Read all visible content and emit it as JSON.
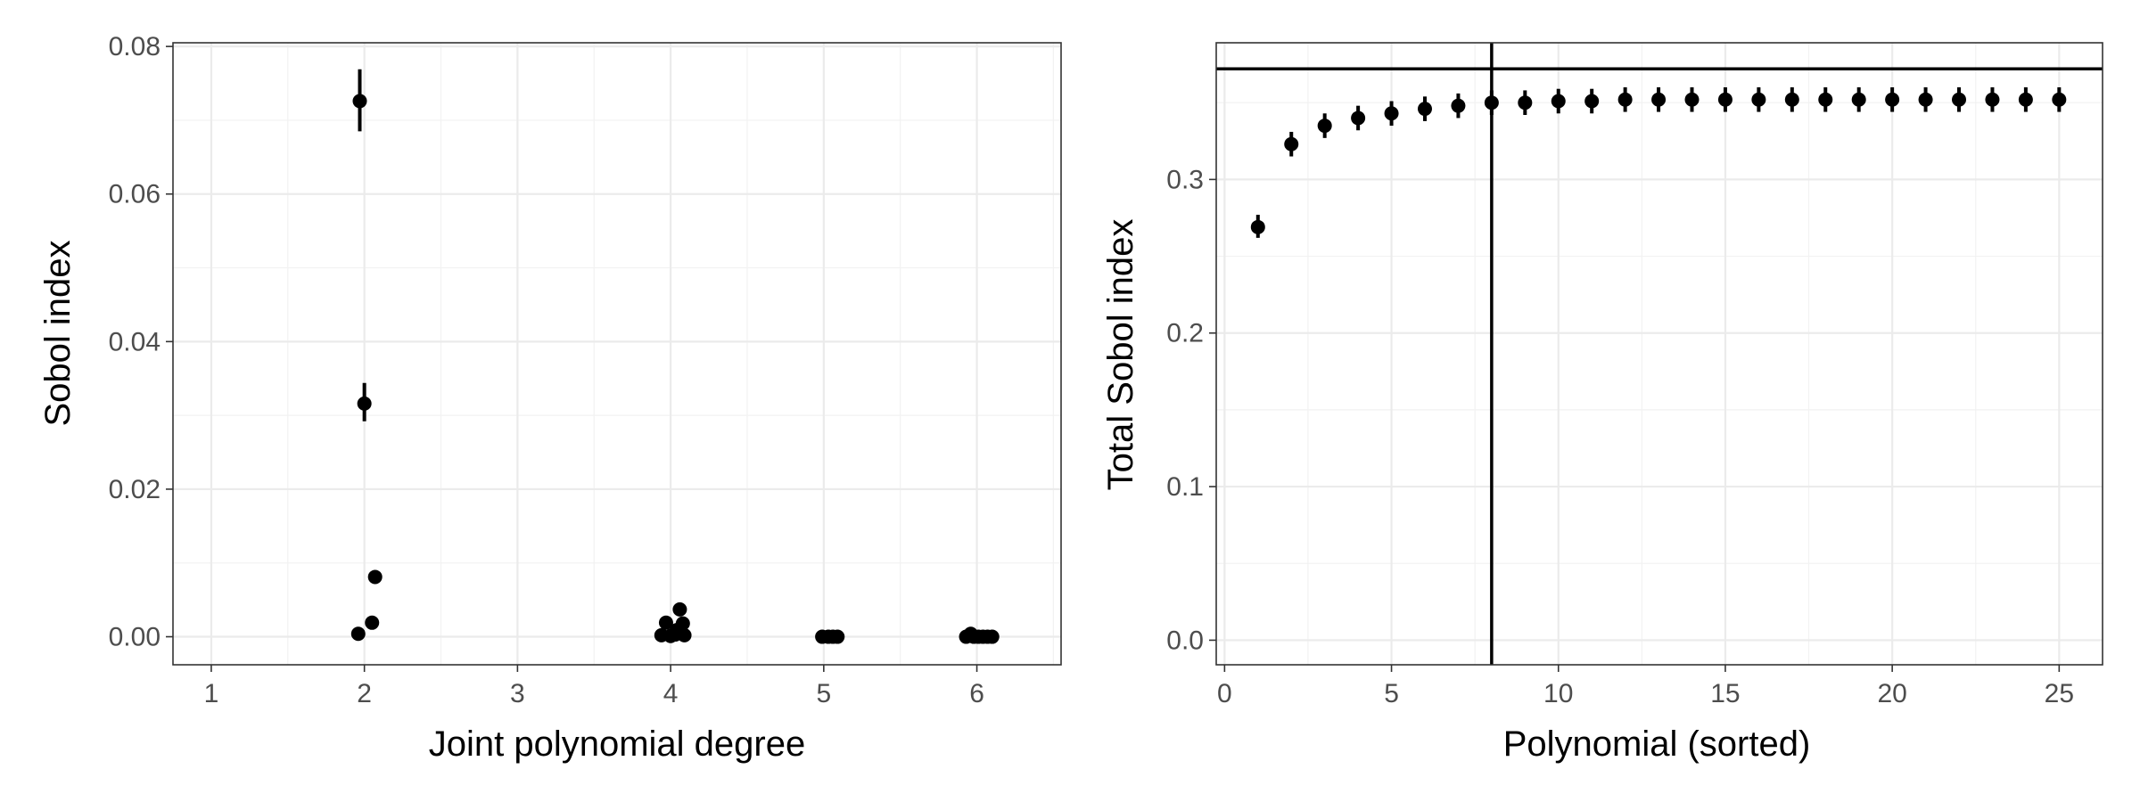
{
  "chart_data": [
    {
      "type": "scatter",
      "title": "",
      "xlabel": "Joint polynomial degree",
      "ylabel": "Sobol index",
      "xlim": [
        0.75,
        6.55
      ],
      "ylim": [
        -0.0038,
        0.0805
      ],
      "x_ticks": [
        1,
        2,
        3,
        4,
        5,
        6
      ],
      "y_ticks": [
        0.0,
        0.02,
        0.04,
        0.06,
        0.08
      ],
      "x_tick_labels": [
        "1",
        "2",
        "3",
        "4",
        "5",
        "6"
      ],
      "y_tick_labels": [
        "0.00",
        "0.02",
        "0.04",
        "0.06",
        "0.08"
      ],
      "grid": true,
      "legend": "none",
      "marker_color": "#000000",
      "points": [
        {
          "x": 1.97,
          "y": 0.0726,
          "ymin": 0.0685,
          "ymax": 0.0769
        },
        {
          "x": 2.0,
          "y": 0.0316,
          "ymin": 0.0292,
          "ymax": 0.0344
        },
        {
          "x": 2.07,
          "y": 0.0081,
          "ymin": 0.0081,
          "ymax": 0.0081
        },
        {
          "x": 2.05,
          "y": 0.0019,
          "ymin": 0.0019,
          "ymax": 0.0019
        },
        {
          "x": 1.96,
          "y": 0.0004,
          "ymin": 0.0004,
          "ymax": 0.0004
        },
        {
          "x": 3.94,
          "y": 0.0002,
          "ymin": 0.0002,
          "ymax": 0.0002
        },
        {
          "x": 3.97,
          "y": 0.0019,
          "ymin": 0.0019,
          "ymax": 0.0019
        },
        {
          "x": 4.0,
          "y": 0.0001,
          "ymin": 0.0001,
          "ymax": 0.0001
        },
        {
          "x": 4.03,
          "y": 0.0003,
          "ymin": 0.0003,
          "ymax": 0.0003
        },
        {
          "x": 4.06,
          "y": 0.0037,
          "ymin": 0.0037,
          "ymax": 0.0037
        },
        {
          "x": 4.08,
          "y": 0.0018,
          "ymin": 0.0018,
          "ymax": 0.0018
        },
        {
          "x": 4.09,
          "y": 0.0002,
          "ymin": 0.0002,
          "ymax": 0.0002
        },
        {
          "x": 4.04,
          "y": 0.0009,
          "ymin": 0.0009,
          "ymax": 0.0009
        },
        {
          "x": 4.99,
          "y": 0.0,
          "ymin": 0.0,
          "ymax": 0.0
        },
        {
          "x": 5.03,
          "y": 0.0,
          "ymin": 0.0,
          "ymax": 0.0
        },
        {
          "x": 5.06,
          "y": 0.0,
          "ymin": 0.0,
          "ymax": 0.0
        },
        {
          "x": 5.09,
          "y": 0.0,
          "ymin": 0.0,
          "ymax": 0.0
        },
        {
          "x": 5.93,
          "y": 0.0,
          "ymin": 0.0,
          "ymax": 0.0
        },
        {
          "x": 5.96,
          "y": 0.0004,
          "ymin": 0.0004,
          "ymax": 0.0004
        },
        {
          "x": 5.98,
          "y": 0.0,
          "ymin": 0.0,
          "ymax": 0.0
        },
        {
          "x": 6.01,
          "y": 0.0,
          "ymin": 0.0,
          "ymax": 0.0
        },
        {
          "x": 6.04,
          "y": 0.0,
          "ymin": 0.0,
          "ymax": 0.0
        },
        {
          "x": 6.07,
          "y": 0.0,
          "ymin": 0.0,
          "ymax": 0.0
        },
        {
          "x": 6.1,
          "y": 0.0,
          "ymin": 0.0,
          "ymax": 0.0
        }
      ]
    },
    {
      "type": "scatter",
      "title": "",
      "xlabel": "Polynomial (sorted)",
      "ylabel": "Total Sobol index",
      "xlim": [
        -0.25,
        26.3
      ],
      "ylim": [
        -0.016,
        0.389
      ],
      "x_ticks": [
        0,
        5,
        10,
        15,
        20,
        25
      ],
      "y_ticks": [
        0.0,
        0.1,
        0.2,
        0.3
      ],
      "x_tick_labels": [
        "0",
        "5",
        "10",
        "15",
        "20",
        "25"
      ],
      "y_tick_labels": [
        "0.0",
        "0.1",
        "0.2",
        "0.3"
      ],
      "grid": true,
      "legend": "none",
      "marker_color": "#000000",
      "reference_lines": {
        "hline_y": 0.372,
        "vline_x": 8
      },
      "points": [
        {
          "x": 1,
          "y": 0.269,
          "ymin": 0.262,
          "ymax": 0.277
        },
        {
          "x": 2,
          "y": 0.323,
          "ymin": 0.315,
          "ymax": 0.331
        },
        {
          "x": 3,
          "y": 0.335,
          "ymin": 0.327,
          "ymax": 0.343
        },
        {
          "x": 4,
          "y": 0.34,
          "ymin": 0.332,
          "ymax": 0.348
        },
        {
          "x": 5,
          "y": 0.343,
          "ymin": 0.335,
          "ymax": 0.351
        },
        {
          "x": 6,
          "y": 0.346,
          "ymin": 0.338,
          "ymax": 0.354
        },
        {
          "x": 7,
          "y": 0.348,
          "ymin": 0.34,
          "ymax": 0.356
        },
        {
          "x": 8,
          "y": 0.35,
          "ymin": 0.342,
          "ymax": 0.358
        },
        {
          "x": 9,
          "y": 0.35,
          "ymin": 0.342,
          "ymax": 0.358
        },
        {
          "x": 10,
          "y": 0.351,
          "ymin": 0.343,
          "ymax": 0.359
        },
        {
          "x": 11,
          "y": 0.351,
          "ymin": 0.343,
          "ymax": 0.359
        },
        {
          "x": 12,
          "y": 0.352,
          "ymin": 0.344,
          "ymax": 0.36
        },
        {
          "x": 13,
          "y": 0.352,
          "ymin": 0.344,
          "ymax": 0.36
        },
        {
          "x": 14,
          "y": 0.352,
          "ymin": 0.344,
          "ymax": 0.36
        },
        {
          "x": 15,
          "y": 0.352,
          "ymin": 0.344,
          "ymax": 0.36
        },
        {
          "x": 16,
          "y": 0.352,
          "ymin": 0.344,
          "ymax": 0.36
        },
        {
          "x": 17,
          "y": 0.352,
          "ymin": 0.344,
          "ymax": 0.36
        },
        {
          "x": 18,
          "y": 0.352,
          "ymin": 0.344,
          "ymax": 0.36
        },
        {
          "x": 19,
          "y": 0.352,
          "ymin": 0.344,
          "ymax": 0.36
        },
        {
          "x": 20,
          "y": 0.352,
          "ymin": 0.344,
          "ymax": 0.36
        },
        {
          "x": 21,
          "y": 0.352,
          "ymin": 0.344,
          "ymax": 0.36
        },
        {
          "x": 22,
          "y": 0.352,
          "ymin": 0.344,
          "ymax": 0.36
        },
        {
          "x": 23,
          "y": 0.352,
          "ymin": 0.344,
          "ymax": 0.36
        },
        {
          "x": 24,
          "y": 0.352,
          "ymin": 0.344,
          "ymax": 0.36
        },
        {
          "x": 25,
          "y": 0.352,
          "ymin": 0.344,
          "ymax": 0.36
        }
      ]
    }
  ]
}
